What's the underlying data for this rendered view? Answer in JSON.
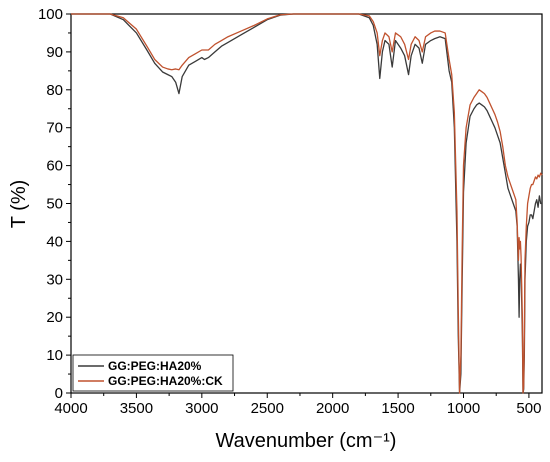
{
  "chart_data": {
    "type": "line",
    "xlabel": "Wavenumber (cm⁻¹)",
    "ylabel": "T (%)",
    "xlim": [
      4000,
      400
    ],
    "ylim": [
      0,
      100
    ],
    "x_reversed": true,
    "grid": false,
    "legend_position": "bottom-left",
    "x_ticks": [
      4000,
      3500,
      3000,
      2500,
      2000,
      1500,
      1000,
      500
    ],
    "y_ticks": [
      0,
      10,
      20,
      30,
      40,
      50,
      60,
      70,
      80,
      90,
      100
    ],
    "series": [
      {
        "name": "GG:PEG:HA20%",
        "color": "#3a3a3a",
        "x": [
          4000,
          3800,
          3700,
          3600,
          3500,
          3420,
          3360,
          3300,
          3260,
          3230,
          3200,
          3175,
          3150,
          3100,
          3050,
          3000,
          2980,
          2950,
          2900,
          2850,
          2800,
          2700,
          2600,
          2500,
          2400,
          2300,
          2000,
          1800,
          1720,
          1690,
          1660,
          1640,
          1620,
          1600,
          1570,
          1545,
          1520,
          1480,
          1450,
          1420,
          1400,
          1370,
          1340,
          1315,
          1290,
          1250,
          1220,
          1180,
          1140,
          1110,
          1090,
          1070,
          1050,
          1040,
          1030,
          1020,
          1010,
          1000,
          980,
          950,
          920,
          900,
          880,
          860,
          840,
          820,
          800,
          780,
          760,
          740,
          720,
          700,
          680,
          660,
          640,
          620,
          600,
          590,
          580,
          575,
          570,
          565,
          560,
          550,
          545,
          540,
          535,
          530,
          520,
          510,
          500,
          490,
          480,
          470,
          460,
          450,
          440,
          430,
          420,
          410,
          400
        ],
        "y": [
          100,
          100,
          100,
          98.5,
          95,
          90.5,
          87,
          84.7,
          84,
          83.5,
          82,
          79,
          83.5,
          86.5,
          87.5,
          88.5,
          88,
          88.5,
          90,
          91.5,
          92.5,
          94.5,
          96.5,
          98.5,
          99.7,
          100,
          100,
          100,
          99,
          97,
          92,
          83,
          90,
          93,
          92,
          86,
          93,
          91,
          89,
          84,
          89,
          92,
          91,
          87,
          92,
          93,
          93.5,
          94,
          93.5,
          85,
          82,
          70,
          40,
          15,
          0,
          5,
          30,
          53,
          66,
          73,
          75,
          76,
          76.5,
          76,
          75.5,
          74.5,
          73,
          71.5,
          70,
          68,
          66,
          62,
          58,
          54,
          52,
          50,
          48,
          44,
          30,
          20,
          30,
          34,
          33,
          15,
          0,
          1,
          10,
          30,
          40,
          44,
          45,
          47,
          47,
          46,
          48,
          50,
          51,
          49,
          52,
          50,
          50
        ]
      },
      {
        "name": "GG:PEG:HA20%:CK",
        "color": "#c0522e",
        "x": [
          4000,
          3800,
          3700,
          3600,
          3500,
          3420,
          3360,
          3300,
          3260,
          3230,
          3200,
          3175,
          3150,
          3100,
          3050,
          3000,
          2980,
          2950,
          2900,
          2850,
          2800,
          2700,
          2600,
          2500,
          2400,
          2300,
          2000,
          1800,
          1720,
          1690,
          1660,
          1640,
          1620,
          1600,
          1570,
          1545,
          1520,
          1480,
          1450,
          1420,
          1400,
          1370,
          1340,
          1315,
          1290,
          1250,
          1220,
          1180,
          1140,
          1110,
          1090,
          1070,
          1050,
          1040,
          1030,
          1020,
          1010,
          1000,
          980,
          950,
          920,
          900,
          880,
          860,
          840,
          820,
          800,
          780,
          760,
          740,
          720,
          700,
          680,
          660,
          640,
          620,
          600,
          590,
          580,
          575,
          570,
          565,
          560,
          550,
          545,
          540,
          535,
          530,
          520,
          510,
          500,
          490,
          480,
          470,
          460,
          450,
          440,
          430,
          420,
          410,
          400
        ],
        "y": [
          100,
          100,
          100,
          99,
          96,
          91.5,
          88,
          86,
          85.5,
          85.3,
          85.5,
          85.3,
          86.5,
          88.5,
          89.5,
          90.5,
          90.5,
          90.5,
          92,
          93,
          94,
          95.5,
          97,
          98.7,
          99.8,
          100,
          100,
          100,
          99.5,
          98,
          95,
          89,
          93,
          95,
          94,
          90,
          95,
          94,
          92,
          88,
          92,
          94,
          93,
          90,
          94,
          95,
          95.5,
          95.5,
          95,
          88,
          84,
          74,
          48,
          22,
          0,
          10,
          38,
          60,
          70,
          76,
          78,
          79,
          80,
          79.5,
          79,
          78,
          76.5,
          75,
          73.5,
          71.5,
          69,
          65,
          60,
          57,
          55,
          53,
          51,
          45,
          35,
          41,
          38,
          40,
          36,
          20,
          0,
          2,
          15,
          35,
          44,
          50,
          52,
          54,
          55,
          55,
          56,
          57,
          56.5,
          57.5,
          57,
          58,
          57.5
        ]
      }
    ]
  }
}
